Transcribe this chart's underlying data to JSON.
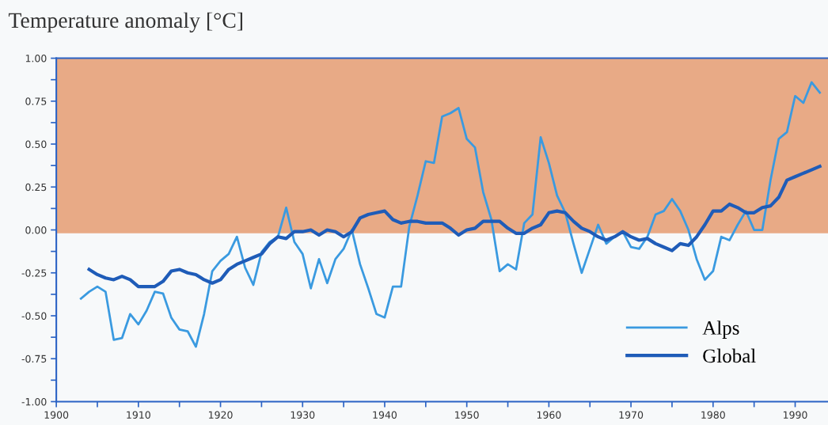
{
  "chart_data": {
    "type": "line",
    "title": "Temperature anomaly [°C]",
    "xlim": [
      1900,
      1994
    ],
    "xticks": [
      1900,
      {
        "value": 1905,
        "label": null
      },
      1910,
      {
        "value": 1915,
        "label": null
      },
      1920,
      {
        "value": 1925,
        "label": null
      },
      1930,
      {
        "value": 1935,
        "label": null
      },
      1940,
      {
        "value": 1945,
        "label": null
      },
      1950,
      {
        "value": 1955,
        "label": null
      },
      1960,
      {
        "value": 1965,
        "label": null
      },
      1970,
      {
        "value": 1975,
        "label": null
      },
      1980,
      {
        "value": 1985,
        "label": null
      },
      1990
    ],
    "ylim": [
      -1.0,
      1.0
    ],
    "yticks": [
      {
        "value": -1.0,
        "label": "-1.00"
      },
      {
        "value": -0.875,
        "label": null
      },
      {
        "value": -0.75,
        "label": "-0.75"
      },
      {
        "value": -0.625,
        "label": null
      },
      {
        "value": -0.5,
        "label": "-0.50"
      },
      {
        "value": -0.375,
        "label": null
      },
      {
        "value": -0.25,
        "label": "-0.25"
      },
      {
        "value": -0.125,
        "label": null
      },
      {
        "value": 0.0,
        "label": "0.00"
      },
      {
        "value": 0.125,
        "label": null
      },
      {
        "value": 0.25,
        "label": "0.25"
      },
      {
        "value": 0.375,
        "label": null
      },
      {
        "value": 0.5,
        "label": "0.50"
      },
      {
        "value": 0.625,
        "label": null
      },
      {
        "value": 0.75,
        "label": "0.75"
      },
      {
        "value": 0.875,
        "label": null
      },
      {
        "value": 1.0,
        "label": "1.00"
      }
    ],
    "bands": [
      {
        "axis": "y",
        "from": -0.02,
        "to": 1.0,
        "color": "#e8aa86"
      }
    ],
    "grid": false,
    "legend": "bottom right",
    "marker": "none",
    "line_style": "solid",
    "series": [
      {
        "name": "Alps",
        "color": "#3a9ae0",
        "x": [
          1903,
          1904,
          1905,
          1906,
          1907,
          1908,
          1909,
          1910,
          1911,
          1912,
          1913,
          1914,
          1915,
          1916,
          1917,
          1918,
          1919,
          1920,
          1921,
          1922,
          1923,
          1924,
          1925,
          1926,
          1927,
          1928,
          1929,
          1930,
          1931,
          1932,
          1933,
          1934,
          1935,
          1936,
          1937,
          1938,
          1939,
          1940,
          1941,
          1942,
          1943,
          1944,
          1945,
          1946,
          1947,
          1948,
          1949,
          1950,
          1951,
          1952,
          1953,
          1954,
          1955,
          1956,
          1957,
          1958,
          1959,
          1960,
          1961,
          1962,
          1963,
          1964,
          1965,
          1966,
          1967,
          1968,
          1969,
          1970,
          1971,
          1972,
          1973,
          1974,
          1975,
          1976,
          1977,
          1978,
          1979,
          1980,
          1981,
          1982,
          1983,
          1984,
          1985,
          1986,
          1987,
          1988,
          1989,
          1990,
          1991,
          1992,
          1993
        ],
        "values": [
          -0.4,
          -0.36,
          -0.33,
          -0.36,
          -0.64,
          -0.63,
          -0.49,
          -0.55,
          -0.47,
          -0.36,
          -0.37,
          -0.51,
          -0.58,
          -0.59,
          -0.68,
          -0.49,
          -0.24,
          -0.18,
          -0.14,
          -0.04,
          -0.22,
          -0.32,
          -0.13,
          -0.07,
          -0.04,
          0.13,
          -0.07,
          -0.14,
          -0.34,
          -0.17,
          -0.31,
          -0.17,
          -0.11,
          0.0,
          -0.2,
          -0.34,
          -0.49,
          -0.51,
          -0.33,
          -0.33,
          0.02,
          0.2,
          0.4,
          0.39,
          0.66,
          0.68,
          0.71,
          0.53,
          0.48,
          0.22,
          0.06,
          -0.24,
          -0.2,
          -0.23,
          0.04,
          0.09,
          0.54,
          0.39,
          0.2,
          0.1,
          -0.08,
          -0.25,
          -0.11,
          0.03,
          -0.08,
          -0.04,
          -0.01,
          -0.1,
          -0.11,
          -0.04,
          0.09,
          0.11,
          0.18,
          0.11,
          0.0,
          -0.17,
          -0.29,
          -0.24,
          -0.04,
          -0.06,
          0.03,
          0.11,
          0.0,
          0.0,
          0.29,
          0.53,
          0.57,
          0.78,
          0.74,
          0.86,
          0.8
        ]
      },
      {
        "name": "Global",
        "color": "#1f5cb8",
        "x": [
          1904,
          1905,
          1906,
          1907,
          1908,
          1909,
          1910,
          1911,
          1912,
          1913,
          1914,
          1915,
          1916,
          1917,
          1918,
          1919,
          1920,
          1921,
          1922,
          1923,
          1924,
          1925,
          1926,
          1927,
          1928,
          1929,
          1930,
          1931,
          1932,
          1933,
          1934,
          1935,
          1936,
          1937,
          1938,
          1939,
          1940,
          1941,
          1942,
          1943,
          1944,
          1945,
          1946,
          1947,
          1948,
          1949,
          1950,
          1951,
          1952,
          1953,
          1954,
          1955,
          1956,
          1957,
          1958,
          1959,
          1960,
          1961,
          1962,
          1963,
          1964,
          1965,
          1966,
          1967,
          1968,
          1969,
          1970,
          1971,
          1972,
          1973,
          1974,
          1975,
          1976,
          1977,
          1978,
          1979,
          1980,
          1981,
          1982,
          1983,
          1984,
          1985,
          1986,
          1987,
          1988,
          1989,
          1990,
          1991,
          1992,
          1993
        ],
        "values": [
          -0.23,
          -0.26,
          -0.28,
          -0.29,
          -0.27,
          -0.29,
          -0.33,
          -0.33,
          -0.33,
          -0.3,
          -0.24,
          -0.23,
          -0.25,
          -0.26,
          -0.29,
          -0.31,
          -0.29,
          -0.23,
          -0.2,
          -0.18,
          -0.16,
          -0.14,
          -0.08,
          -0.04,
          -0.05,
          -0.01,
          -0.01,
          0.0,
          -0.03,
          0.0,
          -0.01,
          -0.04,
          -0.01,
          0.07,
          0.09,
          0.1,
          0.11,
          0.06,
          0.04,
          0.05,
          0.05,
          0.04,
          0.04,
          0.04,
          0.01,
          -0.03,
          0.0,
          0.01,
          0.05,
          0.05,
          0.05,
          0.01,
          -0.02,
          -0.02,
          0.01,
          0.03,
          0.1,
          0.11,
          0.1,
          0.05,
          0.01,
          -0.01,
          -0.04,
          -0.06,
          -0.04,
          -0.01,
          -0.04,
          -0.06,
          -0.05,
          -0.08,
          -0.1,
          -0.12,
          -0.08,
          -0.09,
          -0.04,
          0.03,
          0.11,
          0.11,
          0.15,
          0.13,
          0.1,
          0.1,
          0.13,
          0.14,
          0.19,
          0.29,
          0.31,
          0.33,
          0.35,
          0.37
        ]
      }
    ]
  }
}
